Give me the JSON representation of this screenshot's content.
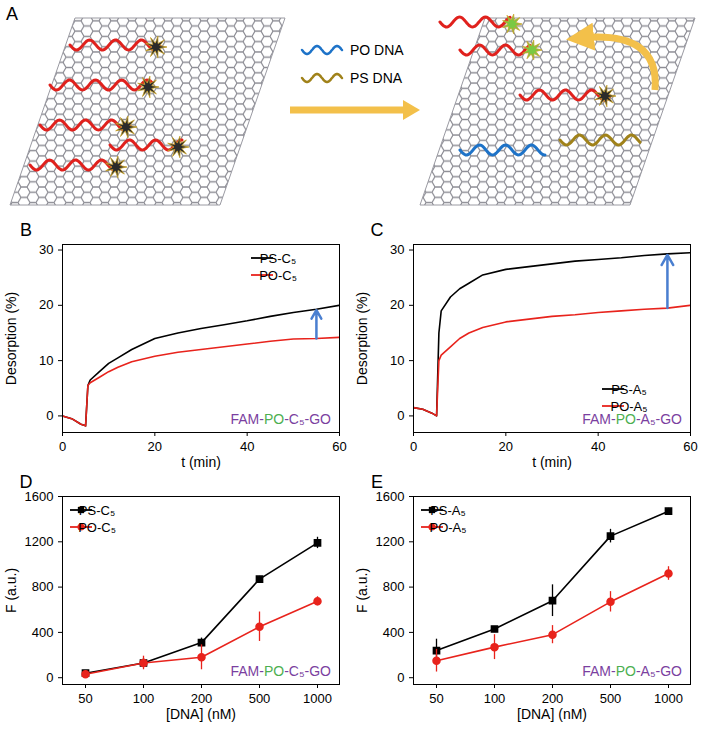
{
  "diagram": {
    "panel": "A",
    "legend": [
      {
        "label": "PO DNA",
        "color": "#1e73c8"
      },
      {
        "label": "PS DNA",
        "color": "#a0821a"
      }
    ]
  },
  "chart_data": [
    {
      "type": "line",
      "panel": "B",
      "x_label": "t (min)",
      "y_label": "Desorption (%)",
      "xlim": [
        0,
        60
      ],
      "xticks": [
        0,
        20,
        40,
        60
      ],
      "ylim": [
        -3,
        31
      ],
      "yticks": [
        0,
        10,
        20,
        30
      ],
      "grid": false,
      "legend": "upper right",
      "annotation": [
        {
          "text": "FAM-",
          "color": "#7b3fa0"
        },
        {
          "text": "PO",
          "color": "#4caf50"
        },
        {
          "text": "-C₅-GO",
          "color": "#7b3fa0"
        }
      ],
      "x": [
        0,
        2,
        4,
        5,
        5.5,
        6,
        8,
        10,
        12,
        15,
        20,
        25,
        30,
        35,
        40,
        45,
        50,
        55,
        60
      ],
      "series": [
        {
          "name": "PS-C₅",
          "color": "#000000",
          "values": [
            0,
            -0.5,
            -1.5,
            -1.8,
            5.5,
            6.5,
            8,
            9.5,
            10.5,
            12,
            14,
            15,
            15.8,
            16.5,
            17.2,
            18,
            18.7,
            19.3,
            20
          ]
        },
        {
          "name": "PO-C₅",
          "color": "#e8231c",
          "values": [
            0,
            -0.5,
            -1.5,
            -1.8,
            5.5,
            6,
            7,
            8,
            8.8,
            9.8,
            10.8,
            11.5,
            12,
            12.5,
            13,
            13.5,
            13.9,
            14,
            14.2
          ]
        }
      ]
    },
    {
      "type": "line",
      "panel": "C",
      "x_label": "t (min)",
      "y_label": "Desorption (%)",
      "xlim": [
        0,
        60
      ],
      "xticks": [
        0,
        20,
        40,
        60
      ],
      "ylim": [
        -3,
        31
      ],
      "yticks": [
        0,
        10,
        20,
        30
      ],
      "grid": false,
      "legend": "lower right",
      "annotation": [
        {
          "text": "FAM-",
          "color": "#7b3fa0"
        },
        {
          "text": "PO",
          "color": "#4caf50"
        },
        {
          "text": "-A₅-GO",
          "color": "#7b3fa0"
        }
      ],
      "x": [
        0,
        2,
        4,
        5,
        5.5,
        6,
        8,
        10,
        12,
        15,
        20,
        25,
        30,
        35,
        40,
        45,
        50,
        55,
        60
      ],
      "series": [
        {
          "name": "PS-A₅",
          "color": "#000000",
          "values": [
            1.5,
            1.2,
            0.5,
            0,
            15,
            19,
            21.5,
            23,
            24,
            25.5,
            26.5,
            27,
            27.5,
            28,
            28.3,
            28.6,
            29,
            29.3,
            29.5
          ]
        },
        {
          "name": "PO-A₅",
          "color": "#e8231c",
          "values": [
            1.5,
            1.2,
            0.5,
            0,
            10,
            11,
            12.5,
            14,
            15,
            16,
            17,
            17.5,
            18,
            18.3,
            18.7,
            19,
            19.3,
            19.5,
            20
          ]
        }
      ]
    },
    {
      "type": "line",
      "panel": "D",
      "x_label": "[DNA] (nM)",
      "y_label": "F (a.u.)",
      "ylim": [
        -60,
        1600
      ],
      "yticks": [
        0,
        400,
        800,
        1200,
        1600
      ],
      "grid": false,
      "legend": "upper left",
      "annotation": [
        {
          "text": "FAM-",
          "color": "#7b3fa0"
        },
        {
          "text": "PO",
          "color": "#4caf50"
        },
        {
          "text": "-C₅-GO",
          "color": "#7b3fa0"
        }
      ],
      "categories": [
        "50",
        "100",
        "200",
        "500",
        "1000"
      ],
      "series": [
        {
          "name": "PS-C₅",
          "color": "#000000",
          "marker": "square",
          "values": [
            40,
            130,
            310,
            870,
            1190
          ],
          "errors": [
            20,
            40,
            40,
            25,
            50
          ]
        },
        {
          "name": "PO-C₅",
          "color": "#e8231c",
          "marker": "circle",
          "values": [
            30,
            130,
            180,
            450,
            675
          ],
          "errors": [
            15,
            60,
            110,
            130,
            40
          ]
        }
      ]
    },
    {
      "type": "line",
      "panel": "E",
      "x_label": "[DNA] (nM)",
      "y_label": "F (a.u.)",
      "ylim": [
        -60,
        1600
      ],
      "yticks": [
        0,
        400,
        800,
        1200,
        1600
      ],
      "grid": false,
      "legend": "upper left",
      "annotation": [
        {
          "text": "FAM-",
          "color": "#7b3fa0"
        },
        {
          "text": "PO",
          "color": "#4caf50"
        },
        {
          "text": "-A₅-GO",
          "color": "#7b3fa0"
        }
      ],
      "categories": [
        "50",
        "100",
        "200",
        "500",
        "1000"
      ],
      "series": [
        {
          "name": "PS-A₅",
          "color": "#000000",
          "marker": "square",
          "values": [
            240,
            430,
            680,
            1250,
            1470
          ],
          "errors": [
            100,
            20,
            140,
            60,
            25
          ]
        },
        {
          "name": "PO-A₅",
          "color": "#e8231c",
          "marker": "circle",
          "values": [
            150,
            270,
            380,
            670,
            920
          ],
          "errors": [
            100,
            110,
            80,
            90,
            60
          ]
        }
      ]
    }
  ]
}
